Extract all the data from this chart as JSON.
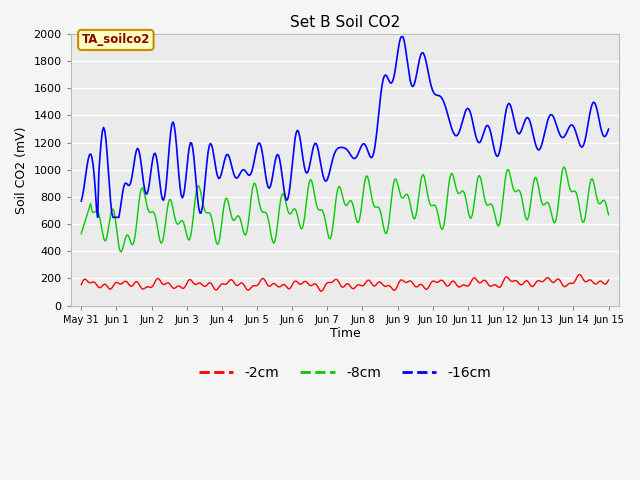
{
  "title": "Set B Soil CO2",
  "ylabel": "Soil CO2 (mV)",
  "xlabel": "Time",
  "annotation": "TA_soilco2",
  "legend_colors": [
    "#ff0000",
    "#00cc00",
    "#0000ff"
  ],
  "legend_labels": [
    "-2cm",
    "-8cm",
    "-16cm"
  ],
  "ylim": [
    0,
    2000
  ],
  "y_ticks": [
    0,
    200,
    400,
    600,
    800,
    1000,
    1200,
    1400,
    1600,
    1800,
    2000
  ],
  "figsize": [
    6.4,
    4.8
  ],
  "dpi": 100
}
